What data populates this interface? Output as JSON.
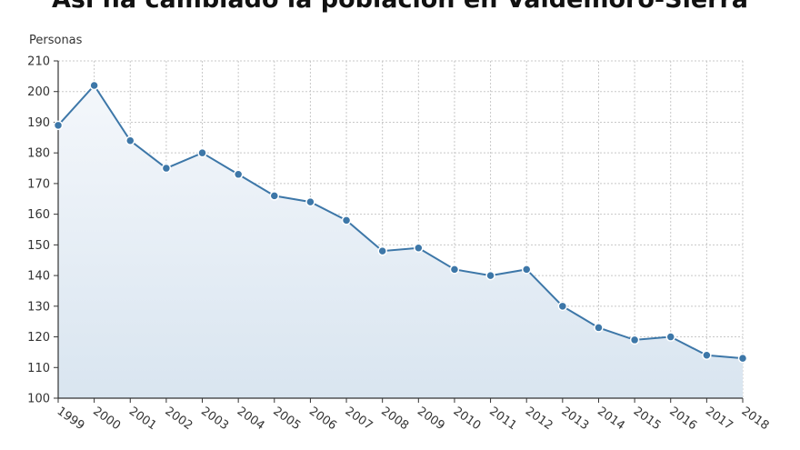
{
  "chart_data": {
    "type": "area",
    "title": "Así ha cambiado la población en Valdemoro-Sierra",
    "ylabel": "Personas",
    "xlabel": "",
    "x": [
      "1999",
      "2000",
      "2001",
      "2002",
      "2003",
      "2004",
      "2005",
      "2006",
      "2007",
      "2008",
      "2009",
      "2010",
      "2011",
      "2012",
      "2013",
      "2014",
      "2015",
      "2016",
      "2017",
      "2018"
    ],
    "series": [
      {
        "values": [
          189,
          202,
          184,
          175,
          180,
          173,
          166,
          164,
          158,
          148,
          149,
          142,
          140,
          142,
          130,
          123,
          119,
          120,
          114,
          113
        ]
      }
    ],
    "ylim": [
      100,
      210
    ],
    "yticks": [
      100,
      110,
      120,
      130,
      140,
      150,
      160,
      170,
      180,
      190,
      200,
      210
    ],
    "grid": true,
    "legend": "none",
    "colors": {
      "line": "#3d77a8",
      "marker": "#3d77a8",
      "marker_stroke": "#ffffff",
      "fill_top": "#f4f7fb",
      "fill_bottom": "#d9e5f0",
      "grid": "#c8c8c8",
      "axis": "#333333"
    }
  }
}
